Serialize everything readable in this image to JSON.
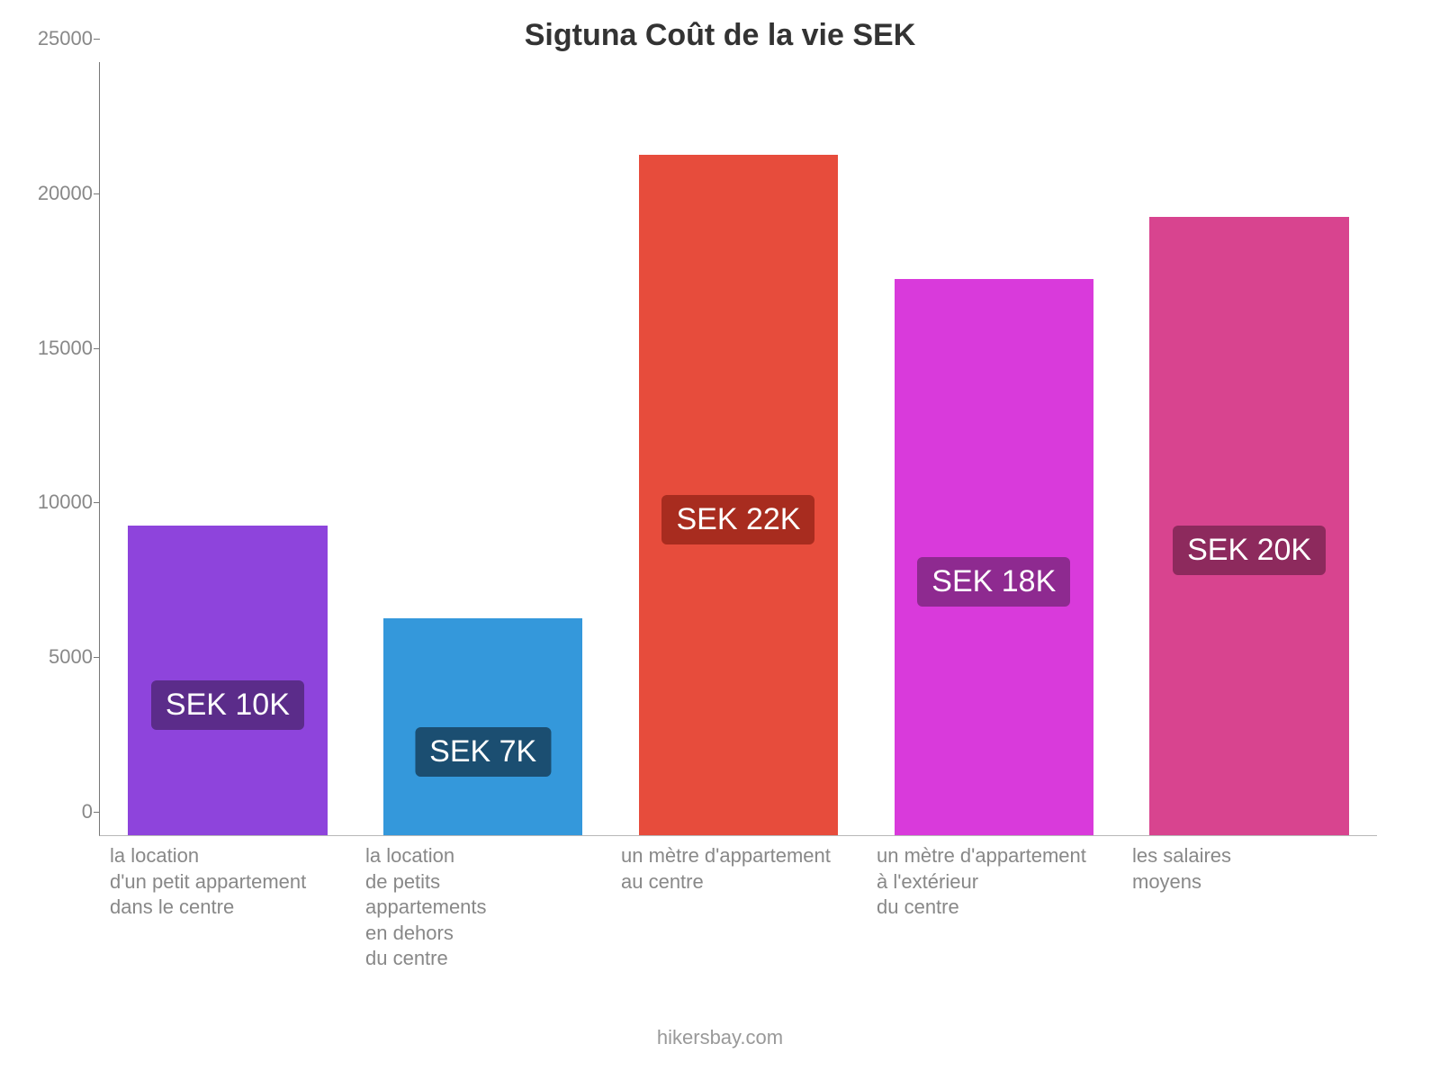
{
  "chart": {
    "type": "bar",
    "title": "Sigtuna Coût de la vie SEK",
    "title_fontsize": 34,
    "title_color": "#333333",
    "background_color": "#ffffff",
    "axis_color": "#777777",
    "tick_label_color": "#888888",
    "tick_label_fontsize": 22,
    "y": {
      "min": 0,
      "max": 25000,
      "step": 5000,
      "ticks": [
        0,
        5000,
        10000,
        15000,
        20000,
        25000
      ]
    },
    "bar_width_ratio": 0.78,
    "bars": [
      {
        "value": 10000,
        "label_lines": [
          "la location",
          "d'un petit appartement",
          "dans le centre"
        ],
        "color": "#8e44dc",
        "badge_text": "SEK 10K",
        "badge_bg": "#5b2c8a",
        "badge_text_color": "#ffffff"
      },
      {
        "value": 7000,
        "label_lines": [
          "la location",
          "de petits",
          "appartements",
          "en dehors",
          "du centre"
        ],
        "color": "#3498db",
        "badge_text": "SEK 7K",
        "badge_bg": "#1b4e71",
        "badge_text_color": "#ffffff"
      },
      {
        "value": 22000,
        "label_lines": [
          "un mètre d'appartement",
          "au centre"
        ],
        "color": "#e74c3c",
        "badge_text": "SEK 22K",
        "badge_bg": "#a82c1f",
        "badge_text_color": "#ffffff"
      },
      {
        "value": 18000,
        "label_lines": [
          "un mètre d'appartement",
          "à l'extérieur",
          "du centre"
        ],
        "color": "#d93adb",
        "badge_text": "SEK 18K",
        "badge_bg": "#8e2a90",
        "badge_text_color": "#ffffff"
      },
      {
        "value": 20000,
        "label_lines": [
          "les salaires",
          "moyens"
        ],
        "color": "#d8448f",
        "badge_text": "SEK 20K",
        "badge_bg": "#8d2a5d",
        "badge_text_color": "#ffffff"
      }
    ],
    "badge_fontsize": 34,
    "attribution": "hikersbay.com",
    "attribution_color": "#999999",
    "attribution_fontsize": 22
  }
}
